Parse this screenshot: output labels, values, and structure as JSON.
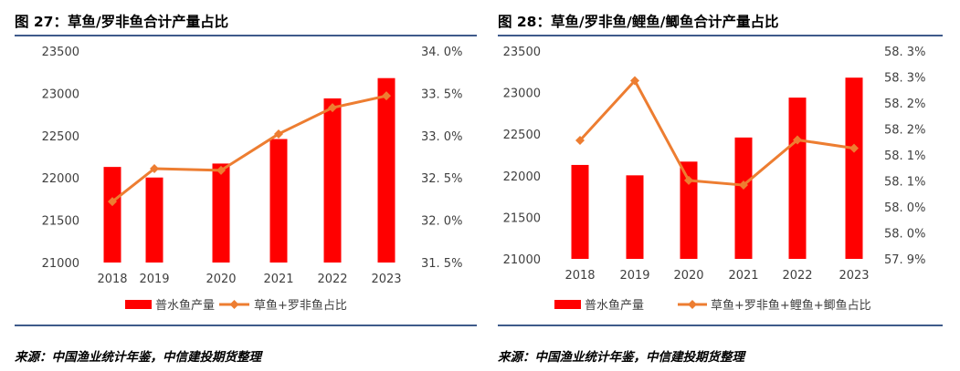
{
  "colors": {
    "bar": "#ff0000",
    "line": "#ed7d31",
    "rule": "#3e5a8a"
  },
  "charts": [
    {
      "title": "图 27：草鱼/罗非鱼合计产量占比",
      "source": "来源：中国渔业统计年鉴，中信建投期货整理",
      "left_ticks": [
        "23500",
        "23000",
        "22500",
        "22000",
        "21500",
        "21000"
      ],
      "right_ticks": [
        "34. 0%",
        "33. 5%",
        "33. 0%",
        "32. 5%",
        "32. 0%",
        "31. 5%"
      ],
      "x_ticks": [
        "2018",
        "2019",
        "2020",
        "2021",
        "2022",
        "2023"
      ],
      "legend": [
        "普水鱼产量",
        "草鱼+罗非鱼占比"
      ]
    },
    {
      "title": "图 28：草鱼/罗非鱼/鲤鱼/鲫鱼合计产量占比",
      "source": "来源：中国渔业统计年鉴，中信建投期货整理",
      "left_ticks": [
        "23500",
        "23000",
        "22500",
        "22000",
        "21500",
        "21000"
      ],
      "right_ticks": [
        "58. 3%",
        "58. 3%",
        "58. 2%",
        "58. 2%",
        "58. 1%",
        "58. 1%",
        "58. 0%",
        "58. 0%",
        "57. 9%"
      ],
      "x_ticks": [
        "2018",
        "2019",
        "2020",
        "2021",
        "2022",
        "2023"
      ],
      "legend": [
        "普水鱼产量",
        "草鱼+罗非鱼+鲤鱼+鲫鱼占比"
      ]
    }
  ],
  "chart_data": [
    {
      "type": "bar",
      "title": "图 27：草鱼/罗非鱼合计产量占比",
      "categories": [
        "2018",
        "2019",
        "2020",
        "2021",
        "2022",
        "2023"
      ],
      "series": [
        {
          "name": "普水鱼产量",
          "type": "bar",
          "axis": "left",
          "values": [
            22130,
            22005,
            22170,
            22460,
            22940,
            23180
          ]
        },
        {
          "name": "草鱼+罗非鱼占比",
          "type": "line",
          "axis": "right",
          "values": [
            32.22,
            32.61,
            32.59,
            33.02,
            33.33,
            33.47
          ]
        }
      ],
      "ylim_left": [
        21000,
        23500
      ],
      "ylim_right": [
        31.5,
        34.0
      ]
    },
    {
      "type": "bar",
      "title": "图 28：草鱼/罗非鱼/鲤鱼/鲫鱼合计产量占比",
      "categories": [
        "2018",
        "2019",
        "2020",
        "2021",
        "2022",
        "2023"
      ],
      "series": [
        {
          "name": "普水鱼产量",
          "type": "bar",
          "axis": "left",
          "values": [
            22130,
            22005,
            22170,
            22460,
            22940,
            23180
          ]
        },
        {
          "name": "草鱼+罗非鱼+鲤鱼+鲫鱼占比",
          "type": "line",
          "axis": "right",
          "values": [
            58.158,
            58.273,
            58.081,
            58.072,
            58.159,
            58.143
          ]
        }
      ],
      "ylim_left": [
        21000,
        23500
      ],
      "ylim_right": [
        57.93,
        58.33
      ]
    }
  ]
}
